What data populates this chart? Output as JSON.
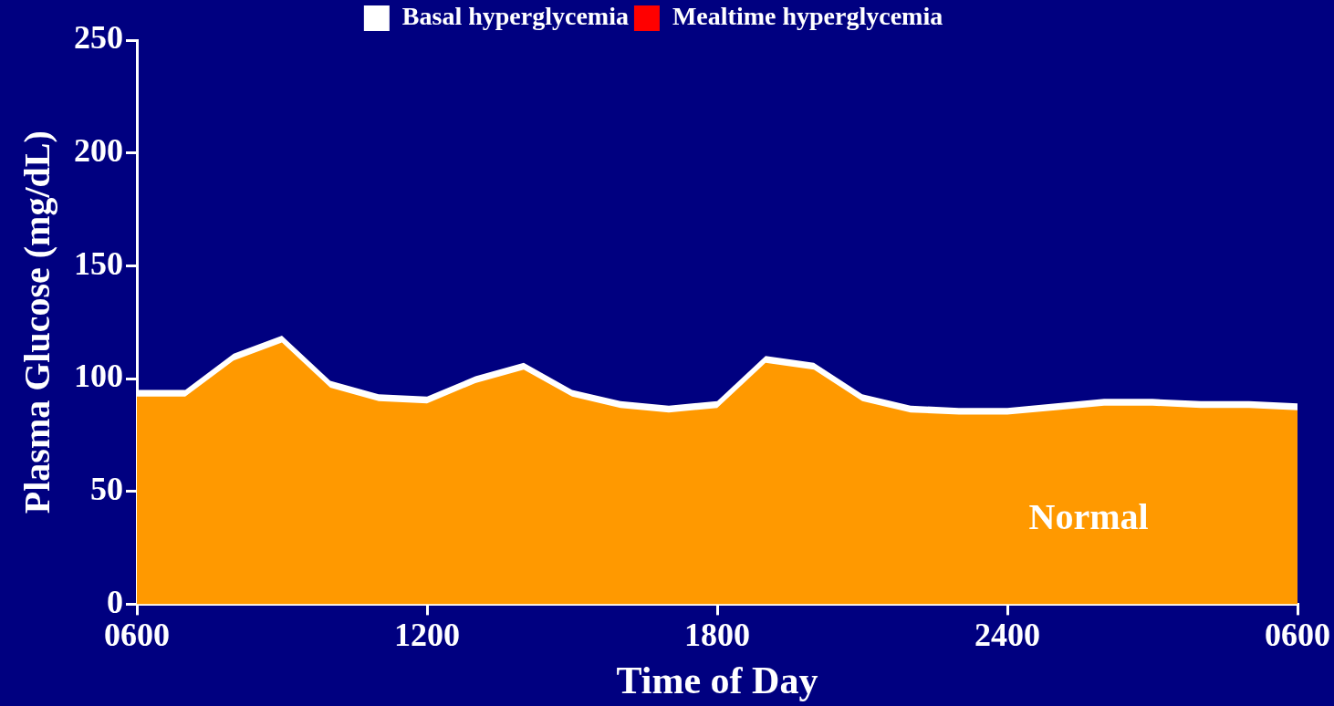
{
  "chart_data": {
    "type": "area",
    "xlabel": "Time of Day",
    "ylabel": "Plasma Glucose (mg/dL)",
    "categories": [
      "0600",
      null,
      null,
      null,
      null,
      null,
      "1200",
      null,
      null,
      null,
      null,
      null,
      "1800",
      null,
      null,
      null,
      null,
      null,
      "2400",
      null,
      null,
      null,
      null,
      null,
      "0600"
    ],
    "series": [
      {
        "color": "#ff9900",
        "values": [
          92,
          92,
          108,
          116,
          96,
          90,
          89,
          98,
          104,
          92,
          87,
          85,
          87,
          107,
          104,
          90,
          85,
          84,
          84,
          86,
          88,
          88,
          87,
          87,
          86
        ]
      },
      {
        "name": "Basal hyperglycemia",
        "color": "#ffffff",
        "values": [
          95,
          95,
          111,
          119,
          99,
          93,
          92,
          101,
          107,
          95,
          90,
          88,
          90,
          110,
          107,
          93,
          88,
          87,
          87,
          89,
          91,
          91,
          90,
          90,
          89
        ]
      },
      {
        "name": "Mealtime hyperglycemia",
        "color": "#ff0000",
        "values": [
          null,
          null,
          null,
          null,
          null,
          null,
          null,
          null,
          null,
          null,
          null,
          null,
          null,
          null,
          null,
          null,
          null,
          null,
          null,
          null,
          null,
          null,
          null,
          null,
          null
        ]
      }
    ],
    "ylim": [
      0,
      250
    ],
    "yticks": [
      0,
      50,
      100,
      150,
      200,
      250
    ],
    "grid": false,
    "legend": "top",
    "marker": "none",
    "annotations": [
      "Normal"
    ]
  }
}
